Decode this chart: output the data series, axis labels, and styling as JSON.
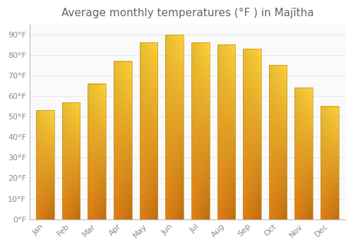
{
  "title": "Average monthly temperatures (°F ) in Majītha",
  "months": [
    "Jan",
    "Feb",
    "Mar",
    "Apr",
    "May",
    "Jun",
    "Jul",
    "Aug",
    "Sep",
    "Oct",
    "Nov",
    "Dec"
  ],
  "values": [
    53,
    57,
    66,
    77,
    86,
    90,
    86,
    85,
    83,
    75,
    64,
    55
  ],
  "bar_color_bottom": "#E8A020",
  "bar_color_top": "#FFD040",
  "bar_color_right": "#FFB820",
  "bar_border_color": "#C0922A",
  "background_color": "#FFFFFF",
  "plot_bg_color": "#FAFAFA",
  "grid_color": "#E8E8E8",
  "text_color": "#888888",
  "title_color": "#666666",
  "ylim": [
    0,
    95
  ],
  "yticks": [
    0,
    10,
    20,
    30,
    40,
    50,
    60,
    70,
    80,
    90
  ],
  "ytick_labels": [
    "0°F",
    "10°F",
    "20°F",
    "30°F",
    "40°F",
    "50°F",
    "60°F",
    "70°F",
    "80°F",
    "90°F"
  ],
  "title_fontsize": 11,
  "tick_fontsize": 8,
  "bar_width": 0.7,
  "figsize": [
    5.0,
    3.5
  ],
  "dpi": 100
}
